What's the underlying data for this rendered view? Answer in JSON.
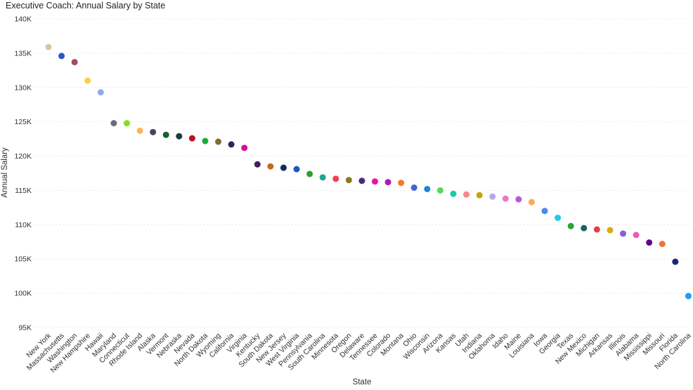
{
  "chart_data": {
    "type": "scatter",
    "title": "Executive Coach: Annual Salary by State",
    "xlabel": "State",
    "ylabel": "Annual Salary",
    "ylim": [
      95000,
      140000
    ],
    "y_tick_values": [
      140000,
      135000,
      130000,
      125000,
      120000,
      115000,
      110000,
      105000,
      100000,
      95000
    ],
    "y_tick_labels": [
      "140K",
      "135K",
      "130K",
      "125K",
      "120K",
      "115K",
      "110K",
      "105K",
      "100K",
      "95K"
    ],
    "grid": "horizontal-dotted",
    "legend": "none",
    "categories": [
      "New York",
      "Massachusetts",
      "Washington",
      "New Hampshire",
      "Hawaii",
      "Maryland",
      "Connecticut",
      "Rhode Island",
      "Alaska",
      "Vermont",
      "Nebraska",
      "Nevada",
      "North Dakota",
      "Wyoming",
      "California",
      "Virginia",
      "Kentucky",
      "South Dakota",
      "New Jersey",
      "West Virginia",
      "Pennsylvania",
      "South Carolina",
      "Minnesota",
      "Oregon",
      "Delaware",
      "Tennessee",
      "Colorado",
      "Montana",
      "Ohio",
      "Wisconsin",
      "Arizona",
      "Kansas",
      "Utah",
      "Indiana",
      "Oklahoma",
      "Idaho",
      "Maine",
      "Louisiana",
      "Iowa",
      "Georgia",
      "Texas",
      "New Mexico",
      "Michigan",
      "Arkansas",
      "Illinois",
      "Alabama",
      "Mississippi",
      "Missouri",
      "Florida",
      "North Carolina"
    ],
    "values": [
      135900,
      134600,
      133700,
      131000,
      129300,
      124800,
      124800,
      123700,
      123500,
      123100,
      122900,
      122600,
      122200,
      122100,
      121700,
      121200,
      118800,
      118500,
      118300,
      118100,
      117400,
      116900,
      116700,
      116500,
      116400,
      116300,
      116200,
      116100,
      115400,
      115200,
      115000,
      114500,
      114400,
      114300,
      114100,
      113800,
      113700,
      113300,
      112000,
      111000,
      109800,
      109500,
      109300,
      109200,
      108700,
      108500,
      107400,
      107200,
      104600,
      99600
    ],
    "point_colors": [
      "#d8c6a2",
      "#2d56c8",
      "#a34a5e",
      "#fad03f",
      "#8fabe8",
      "#676d79",
      "#86df1e",
      "#ffb255",
      "#414859",
      "#1b5e2f",
      "#14413a",
      "#c00d1e",
      "#21a83c",
      "#7d6e2d",
      "#39205f",
      "#d40f9a",
      "#3f2060",
      "#c86a1e",
      "#132869",
      "#1c59c0",
      "#2f9e30",
      "#23a593",
      "#f43d50",
      "#8a7a1e",
      "#4a2882",
      "#ee10a6",
      "#b018b0",
      "#f87820",
      "#3f64d7",
      "#1f86d4",
      "#5cd65c",
      "#17ccaa",
      "#f8848c",
      "#c4a40e",
      "#b5a5f2",
      "#f472c8",
      "#bb55d8",
      "#ffaa55",
      "#4f86f0",
      "#1fc8f0",
      "#24a63c",
      "#15655f",
      "#e04048",
      "#d6ae14",
      "#8360d9",
      "#f057be",
      "#5a0a8a",
      "#ee7338",
      "#16267a",
      "#1e9bf0"
    ],
    "colors": {
      "background": "#ffffff",
      "gridline": "#d8d8d8",
      "text": "#323130",
      "title_text": "#252423"
    }
  }
}
